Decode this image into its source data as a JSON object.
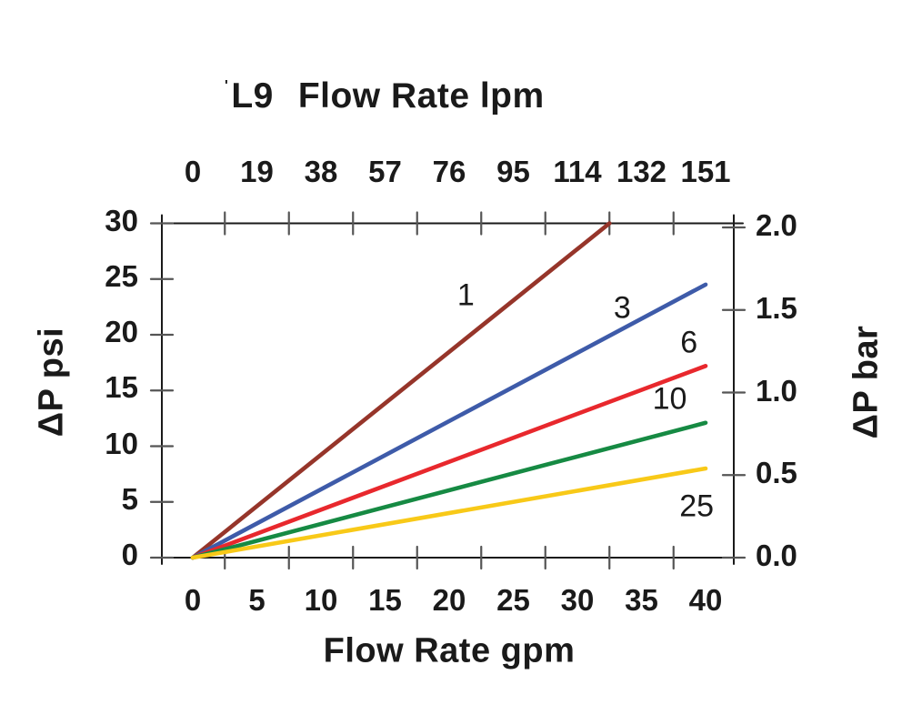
{
  "title": {
    "prefix_mark": "'",
    "model": "L9",
    "top_axis_title": "Flow Rate lpm"
  },
  "chart_data": {
    "type": "line",
    "title": "L9 Flow Rate lpm",
    "subtitle": "",
    "xlabel": "Flow Rate gpm",
    "xlabel_top": "Flow Rate lpm",
    "ylabel_left": "ΔP psi",
    "ylabel_right": "ΔP bar",
    "xlim_gpm": [
      0,
      40
    ],
    "ylim_psi": [
      0,
      30
    ],
    "ylim_bar": [
      0.0,
      2.0
    ],
    "grid": false,
    "legend_position": "inline curve labels",
    "x_ticks_gpm": [
      0,
      5,
      10,
      15,
      20,
      25,
      30,
      35,
      40
    ],
    "x_top_ticks_lpm": [
      0,
      19,
      38,
      57,
      76,
      95,
      114,
      132,
      151
    ],
    "x_minor_tick_marks_gpm": [
      2.5,
      7.5,
      12.5,
      17.5,
      22.5,
      27.5,
      32.5,
      37.5
    ],
    "y_ticks_psi": [
      0,
      5,
      10,
      15,
      20,
      25,
      30
    ],
    "y_right_ticks_bar": [
      0.0,
      0.5,
      1.0,
      1.5,
      2.0
    ],
    "series": [
      {
        "name": "1",
        "color": "#96352a",
        "points_gpm_psi": [
          [
            0,
            0
          ],
          [
            32.5,
            30.0
          ]
        ],
        "clipped_at_top": true,
        "label_pos_gpm_psi": [
          21.3,
          23.5
        ]
      },
      {
        "name": "3",
        "color": "#3e5ba9",
        "points_gpm_psi": [
          [
            0,
            0
          ],
          [
            40.0,
            24.5
          ]
        ],
        "clipped_at_top": false,
        "label_pos_gpm_psi": [
          33.5,
          22.4
        ]
      },
      {
        "name": "6",
        "color": "#e8282d",
        "points_gpm_psi": [
          [
            0,
            0
          ],
          [
            40.0,
            17.2
          ]
        ],
        "clipped_at_top": false,
        "label_pos_gpm_psi": [
          38.7,
          19.3
        ]
      },
      {
        "name": "10",
        "color": "#168a43",
        "points_gpm_psi": [
          [
            0,
            0
          ],
          [
            40.0,
            12.1
          ]
        ],
        "clipped_at_top": false,
        "label_pos_gpm_psi": [
          37.2,
          14.2
        ]
      },
      {
        "name": "25",
        "color": "#f8c918",
        "points_gpm_psi": [
          [
            0,
            0
          ],
          [
            40.0,
            8.0
          ]
        ],
        "clipped_at_top": false,
        "label_pos_gpm_psi": [
          39.3,
          4.6
        ]
      }
    ]
  },
  "colors": {
    "axis": "#1a1a1a",
    "tick_marks": "#555555",
    "text": "#1a1a1a",
    "background": "#ffffff"
  }
}
